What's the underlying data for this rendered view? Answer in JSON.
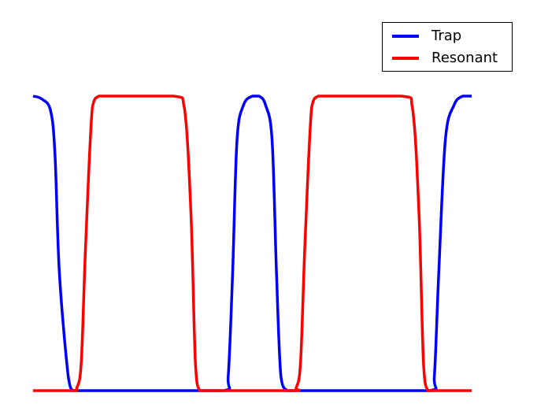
{
  "colors": {
    "trap": "#0000ff",
    "resonant": "#ff0000"
  },
  "chart_data": {
    "type": "line",
    "title": "",
    "xlabel": "",
    "ylabel": "",
    "axes_visible": false,
    "grid": false,
    "legend_position": "top-right",
    "xlim": [
      0,
      1
    ],
    "ylim": [
      0,
      1
    ],
    "series": [
      {
        "name": "Trap",
        "color": "#0000ff",
        "x": [
          0.0,
          0.02,
          0.04,
          0.05,
          0.06,
          0.08,
          0.09,
          0.1,
          0.108,
          0.3,
          0.435,
          0.445,
          0.455,
          0.465,
          0.48,
          0.5,
          0.515,
          0.53,
          0.545,
          0.555,
          0.565,
          0.58,
          0.6,
          0.76,
          0.905,
          0.915,
          0.925,
          0.94,
          0.96,
          0.98,
          1.0
        ],
        "y": [
          1.0,
          0.99,
          0.95,
          0.8,
          0.4,
          0.05,
          0.0,
          0.0,
          0.0,
          0.0,
          0.0,
          0.05,
          0.4,
          0.85,
          0.97,
          1.0,
          1.0,
          0.97,
          0.85,
          0.4,
          0.05,
          0.0,
          0.0,
          0.0,
          0.0,
          0.05,
          0.4,
          0.85,
          0.97,
          1.0,
          1.0
        ]
      },
      {
        "name": "Resonant",
        "color": "#ff0000",
        "x": [
          0.0,
          0.09,
          0.1,
          0.11,
          0.12,
          0.135,
          0.15,
          0.17,
          0.32,
          0.345,
          0.36,
          0.37,
          0.38,
          0.395,
          0.4,
          0.59,
          0.6,
          0.61,
          0.62,
          0.635,
          0.65,
          0.67,
          0.84,
          0.865,
          0.88,
          0.89,
          0.9,
          0.91,
          1.0
        ],
        "y": [
          0.0,
          0.0,
          0.01,
          0.1,
          0.5,
          0.96,
          1.0,
          1.0,
          1.0,
          0.96,
          0.6,
          0.1,
          0.0,
          0.0,
          0.0,
          0.0,
          0.01,
          0.1,
          0.5,
          0.96,
          1.0,
          1.0,
          1.0,
          0.96,
          0.6,
          0.1,
          0.0,
          0.0,
          0.0
        ]
      }
    ]
  }
}
